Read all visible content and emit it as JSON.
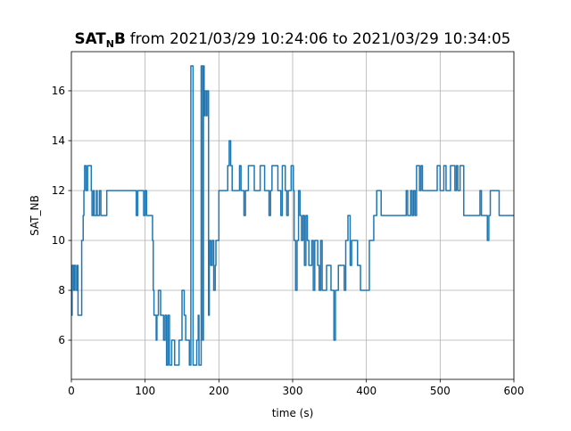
{
  "chart_data": {
    "type": "line",
    "drawstyle": "steps-post",
    "title": {
      "bold": "SAT",
      "subscript": "N",
      "bold_end": "B",
      "text": "from 2021/03/29 10:24:06 to 2021/03/29 10:34:05"
    },
    "xlabel": "time (s)",
    "ylabel": "SAT_NB",
    "xlim": [
      0,
      600
    ],
    "ylim": [
      4.43,
      17.57
    ],
    "xticks": [
      0,
      100,
      200,
      300,
      400,
      500,
      600
    ],
    "yticks": [
      6,
      8,
      10,
      12,
      14,
      16
    ],
    "grid": true,
    "x": [
      0,
      1,
      3,
      4,
      6,
      8,
      9,
      14,
      16,
      17,
      18,
      20,
      22,
      27,
      28,
      30,
      31,
      34,
      35,
      38,
      40,
      48,
      88,
      90,
      98,
      100,
      102,
      110,
      111,
      112,
      115,
      116,
      118,
      121,
      125,
      127,
      129,
      131,
      133,
      136,
      140,
      146,
      150,
      153,
      155,
      160,
      162,
      165,
      170,
      172,
      173,
      176,
      178,
      179,
      180,
      181,
      183,
      184,
      186,
      187,
      189,
      191,
      193,
      195,
      196,
      200,
      212,
      214,
      216,
      218,
      228,
      230,
      234,
      236,
      240,
      248,
      256,
      262,
      268,
      270,
      272,
      280,
      284,
      286,
      290,
      292,
      294,
      298,
      301,
      302,
      304,
      306,
      308,
      310,
      312,
      314,
      316,
      318,
      320,
      322,
      326,
      328,
      330,
      334,
      336,
      338,
      340,
      346,
      352,
      356,
      358,
      362,
      370,
      372,
      375,
      378,
      380,
      388,
      392,
      404,
      410,
      414,
      420,
      454,
      456,
      460,
      462,
      464,
      466,
      468,
      472,
      474,
      476,
      496,
      500,
      505,
      508,
      514,
      520,
      522,
      524,
      527,
      532,
      554,
      556,
      564,
      566,
      568,
      580,
      600
    ],
    "series": [
      {
        "name": "SAT_NB",
        "color": "#1f77b4",
        "values": [
          7,
          9,
          8,
          9,
          8,
          9,
          7,
          10,
          11,
          12,
          13,
          12,
          13,
          12,
          11,
          12,
          11,
          12,
          11,
          12,
          11,
          12,
          11,
          12,
          11,
          12,
          11,
          10,
          8,
          7,
          6,
          7,
          8,
          7,
          6,
          7,
          5,
          7,
          5,
          6,
          5,
          6,
          8,
          7,
          6,
          5,
          17,
          5,
          6,
          7,
          5,
          17,
          6,
          17,
          15,
          16,
          15,
          16,
          7,
          10,
          9,
          10,
          8,
          9,
          10,
          12,
          13,
          14,
          13,
          12,
          13,
          12,
          11,
          12,
          13,
          12,
          13,
          12,
          11,
          12,
          13,
          12,
          11,
          13,
          12,
          11,
          12,
          13,
          12,
          10,
          8,
          10,
          12,
          11,
          10,
          11,
          9,
          11,
          10,
          9,
          10,
          8,
          10,
          9,
          8,
          10,
          8,
          9,
          8,
          6,
          8,
          9,
          8,
          10,
          11,
          9,
          10,
          9,
          8,
          10,
          11,
          12,
          11,
          12,
          11,
          12,
          11,
          12,
          11,
          13,
          12,
          13,
          12,
          13,
          12,
          13,
          12,
          13,
          12,
          13,
          12,
          13,
          11,
          12,
          11,
          10,
          11,
          12,
          11,
          11
        ]
      }
    ]
  }
}
